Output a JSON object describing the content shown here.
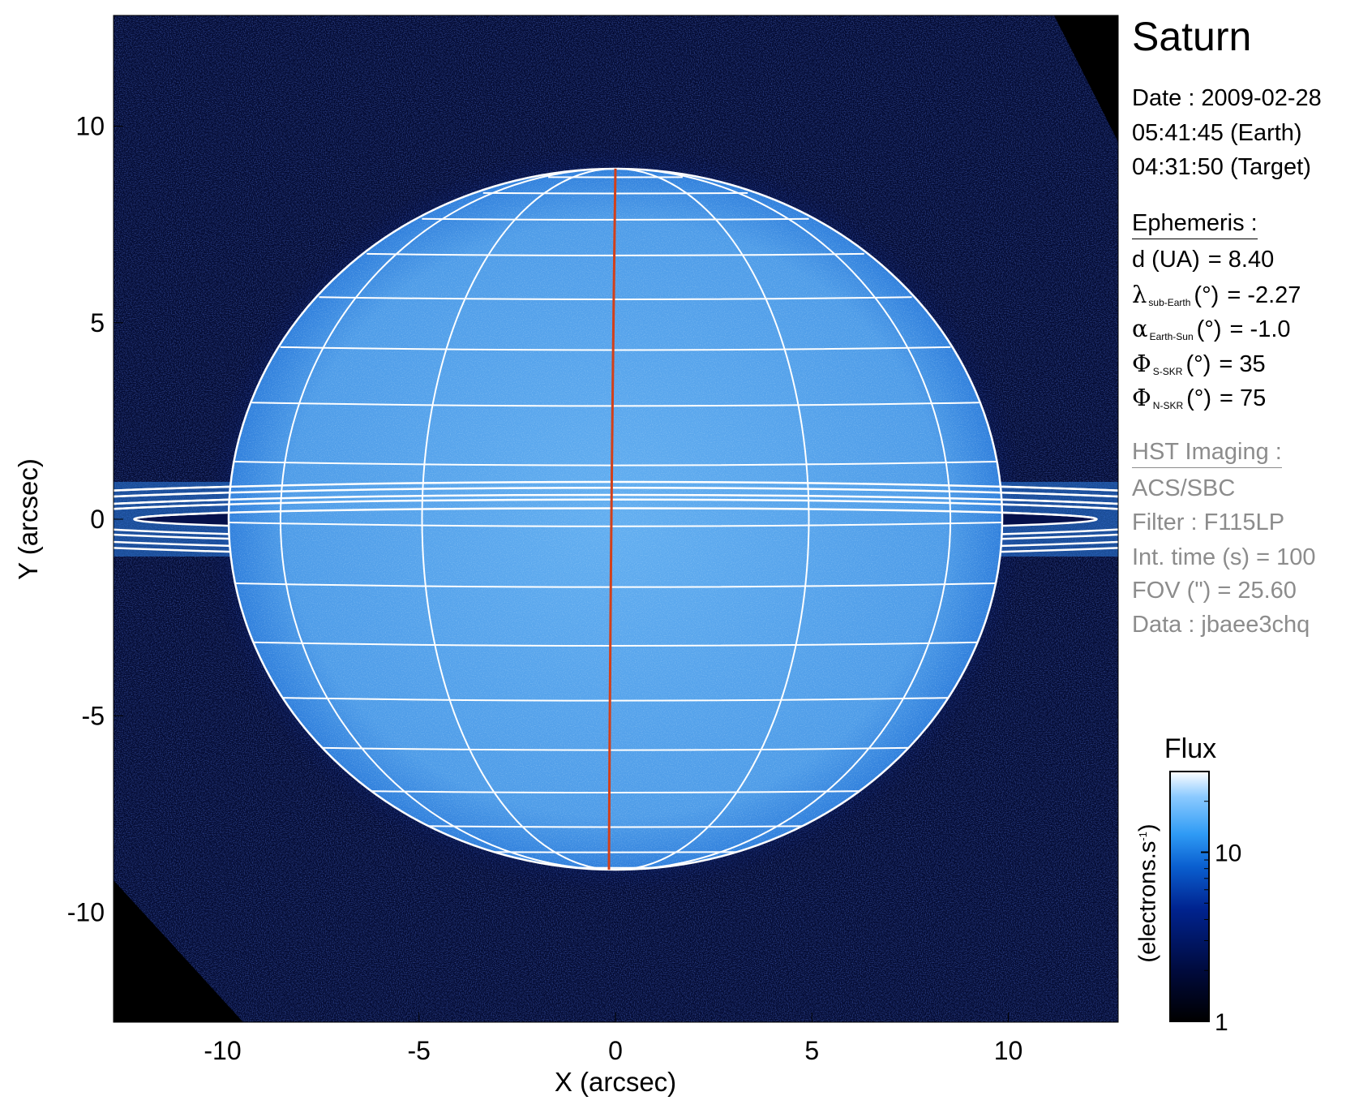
{
  "chart_data": {
    "type": "heatmap",
    "subject": "Saturn",
    "xlabel": "X (arcsec)",
    "ylabel": "Y (arcsec)",
    "xlim": [
      -12.8,
      12.8
    ],
    "ylim": [
      -12.8,
      12.8
    ],
    "xticks": [
      -10,
      -5,
      0,
      5,
      10
    ],
    "yticks": [
      -10,
      -5,
      0,
      5,
      10
    ],
    "xtick_labels": [
      "-10",
      "-5",
      "0",
      "5",
      "10"
    ],
    "ytick_labels": [
      "-10",
      "-5",
      "0",
      "5",
      "10"
    ],
    "grid": false,
    "planet": {
      "equatorial_radius_arcsec": 9.85,
      "polar_radius_arcsec": 8.92,
      "lat_grid_step_deg": 10,
      "lon_grid_step_deg": 30
    },
    "colorbar": {
      "title": "Flux",
      "label": "(electrons.s",
      "label_sup": "-1",
      "label_close": ")",
      "scale": "log",
      "range": [
        1,
        30
      ],
      "ticks": [
        1,
        10
      ],
      "tick_labels": [
        "1",
        "10"
      ],
      "colormap": [
        "#000000",
        "#000a3c",
        "#00208a",
        "#0a5fd0",
        "#2f9bf5",
        "#8ccaff",
        "#ffffff"
      ]
    },
    "colors": {
      "central_meridian": "#d2401a",
      "grid": "#ffffff",
      "disk": "#4a9be6",
      "sky": "#030a30"
    }
  },
  "panel": {
    "title": "Saturn",
    "date": "Date : 2009-02-28",
    "time_earth": "05:41:45 (Earth)",
    "time_target": "04:31:50 (Target)",
    "ephemeris_header": "Ephemeris :",
    "ephemeris": [
      {
        "symbol": "",
        "name": "d (UA)",
        "sub": "",
        "unit": "",
        "value": "= 8.40"
      },
      {
        "symbol": "λ",
        "name": "",
        "sub": "sub-Earth",
        "unit": "(°)",
        "value": "= -2.27"
      },
      {
        "symbol": "α",
        "name": "",
        "sub": "Earth-Sun",
        "unit": "(°)",
        "value": "= -1.0"
      },
      {
        "symbol": "Φ",
        "name": "",
        "sub": "S-SKR",
        "unit": "(°)",
        "value": "= 35"
      },
      {
        "symbol": "Φ",
        "name": "",
        "sub": "N-SKR",
        "unit": "(°)",
        "value": "= 75"
      }
    ],
    "imaging_header": "HST Imaging :",
    "instrument": "ACS/SBC",
    "filter": "Filter : F115LP",
    "int_time": "Int. time (s) = 100",
    "fov": "FOV (\") = 25.60",
    "data_id": "Data : jbaee3chq"
  }
}
